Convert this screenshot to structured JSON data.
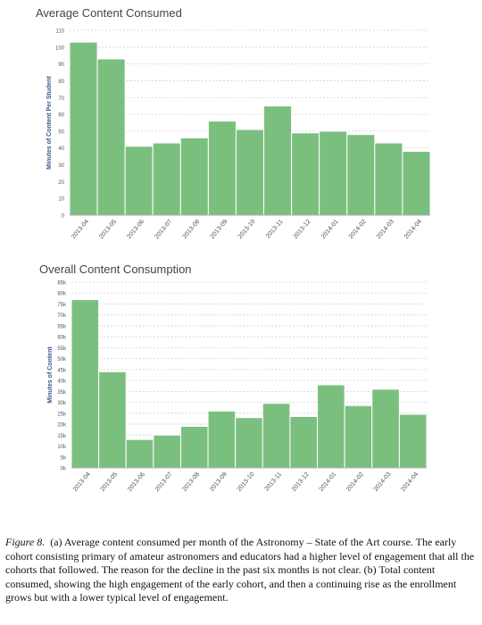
{
  "caption": {
    "figure_label": "Figure 8.",
    "text": "(a) Average content consumed per month of the Astronomy – State of the Art course. The early cohort consisting primary of amateur astronomers and educators had a higher level of engagement that all the cohorts that followed. The reason for the decline in the past six months is not clear. (b) Total content consumed, showing the high engagement of the early cohort, and then a continuing rise as the enrollment grows but with a lower typical level of engagement."
  },
  "colors": {
    "bar": "#7bbf7f",
    "bar_edge": "#ffffff",
    "grid": "#d0d0d0",
    "axis_label": "#3a5a8c",
    "tick": "#555555"
  },
  "chart_data": [
    {
      "type": "bar",
      "title": "Average Content Consumed",
      "ylabel": "Minutes of Content Per Student",
      "xlabel": "",
      "categories": [
        "2013-04",
        "2013-05",
        "2013-06",
        "2013-07",
        "2013-08",
        "2013-09",
        "2013-10",
        "2013-11",
        "2013-12",
        "2014-01",
        "2014-02",
        "2014-03",
        "2014-04"
      ],
      "values": [
        103,
        93,
        41,
        43,
        46,
        56,
        51,
        65,
        49,
        50,
        48,
        43,
        38
      ],
      "ylim": [
        0,
        110
      ],
      "yticks": [
        "0",
        "10",
        "20",
        "30",
        "40",
        "50",
        "60",
        "70",
        "80",
        "90",
        "100",
        "110"
      ],
      "grid": true
    },
    {
      "type": "bar",
      "title": "Overall Content Consumption",
      "ylabel": "Minutes of Content",
      "xlabel": "",
      "categories": [
        "2013-04",
        "2013-05",
        "2013-06",
        "2013-07",
        "2013-08",
        "2013-09",
        "2013-10",
        "2013-11",
        "2013-12",
        "2014-01",
        "2014-02",
        "2014-03",
        "2014-04"
      ],
      "values": [
        77000,
        44000,
        13000,
        15000,
        19000,
        26000,
        23000,
        29500,
        23500,
        38000,
        28500,
        36000,
        24500
      ],
      "ylim": [
        0,
        85000
      ],
      "yticks": [
        "0k",
        "5k",
        "10k",
        "15k",
        "20k",
        "25k",
        "30k",
        "35k",
        "40k",
        "45k",
        "50k",
        "55k",
        "60k",
        "65k",
        "70k",
        "75k",
        "80k",
        "85k"
      ],
      "grid": true
    }
  ]
}
